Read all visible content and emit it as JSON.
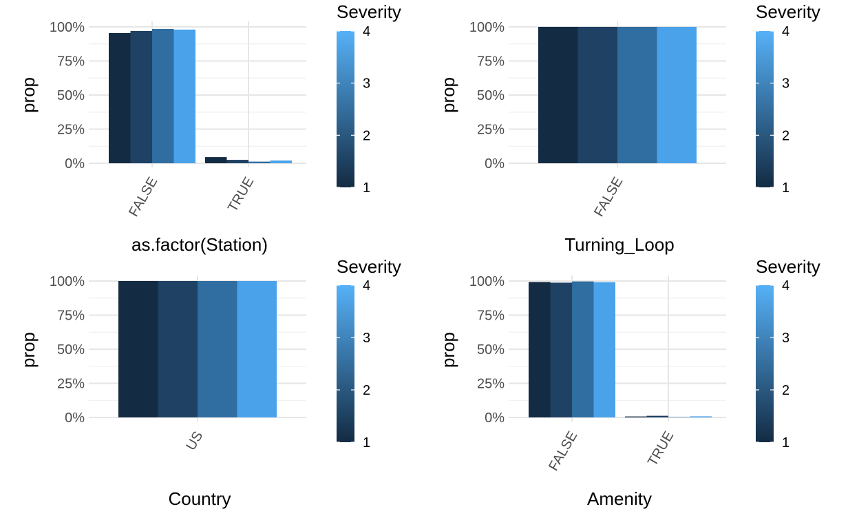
{
  "colors": {
    "gradient_low": "#132B43",
    "gradient_high": "#56B1F7",
    "grid_major": "#e6e6e6",
    "grid_minor": "#efefef",
    "tick_text": "#4d4d4d",
    "title_text": "#000000"
  },
  "legend": {
    "title": "Severity",
    "breaks": [
      1,
      2,
      3,
      4
    ],
    "labels": [
      "1",
      "2",
      "3",
      "4"
    ]
  },
  "chart_data": [
    {
      "type": "bar",
      "position": "dodge",
      "xlabel": "as.factor(Station)",
      "ylabel": "prop",
      "ylim": [
        0,
        1
      ],
      "y_ticks": [
        "0%",
        "25%",
        "50%",
        "75%",
        "100%"
      ],
      "categories": [
        "FALSE",
        "TRUE"
      ],
      "series": [
        {
          "severity": 1,
          "color": "#132B43",
          "values": [
            0.955,
            0.045
          ]
        },
        {
          "severity": 2,
          "color": "#1F4163",
          "values": [
            0.97,
            0.025
          ]
        },
        {
          "severity": 3,
          "color": "#306DA0",
          "values": [
            0.985,
            0.012
          ]
        },
        {
          "severity": 4,
          "color": "#4AA2EB",
          "values": [
            0.98,
            0.02
          ]
        }
      ]
    },
    {
      "type": "bar",
      "position": "dodge",
      "xlabel": "Turning_Loop",
      "ylabel": "prop",
      "ylim": [
        0,
        1
      ],
      "y_ticks": [
        "0%",
        "25%",
        "50%",
        "75%",
        "100%"
      ],
      "categories": [
        "FALSE"
      ],
      "series": [
        {
          "severity": 1,
          "color": "#132B43",
          "values": [
            1.0
          ]
        },
        {
          "severity": 2,
          "color": "#1F4163",
          "values": [
            1.0
          ]
        },
        {
          "severity": 3,
          "color": "#306DA0",
          "values": [
            1.0
          ]
        },
        {
          "severity": 4,
          "color": "#4AA2EB",
          "values": [
            1.0
          ]
        }
      ]
    },
    {
      "type": "bar",
      "position": "dodge",
      "xlabel": "Country",
      "ylabel": "prop",
      "ylim": [
        0,
        1
      ],
      "y_ticks": [
        "0%",
        "25%",
        "50%",
        "75%",
        "100%"
      ],
      "categories": [
        "US"
      ],
      "series": [
        {
          "severity": 1,
          "color": "#132B43",
          "values": [
            1.0
          ]
        },
        {
          "severity": 2,
          "color": "#1F4163",
          "values": [
            1.0
          ]
        },
        {
          "severity": 3,
          "color": "#306DA0",
          "values": [
            1.0
          ]
        },
        {
          "severity": 4,
          "color": "#4AA2EB",
          "values": [
            1.0
          ]
        }
      ]
    },
    {
      "type": "bar",
      "position": "dodge",
      "xlabel": "Amenity",
      "ylabel": "prop",
      "ylim": [
        0,
        1
      ],
      "y_ticks": [
        "0%",
        "25%",
        "50%",
        "75%",
        "100%"
      ],
      "categories": [
        "FALSE",
        "TRUE"
      ],
      "series": [
        {
          "severity": 1,
          "color": "#132B43",
          "values": [
            0.993,
            0.007
          ]
        },
        {
          "severity": 2,
          "color": "#1F4163",
          "values": [
            0.988,
            0.012
          ]
        },
        {
          "severity": 3,
          "color": "#306DA0",
          "values": [
            0.997,
            0.003
          ]
        },
        {
          "severity": 4,
          "color": "#4AA2EB",
          "values": [
            0.992,
            0.008
          ]
        }
      ]
    }
  ]
}
